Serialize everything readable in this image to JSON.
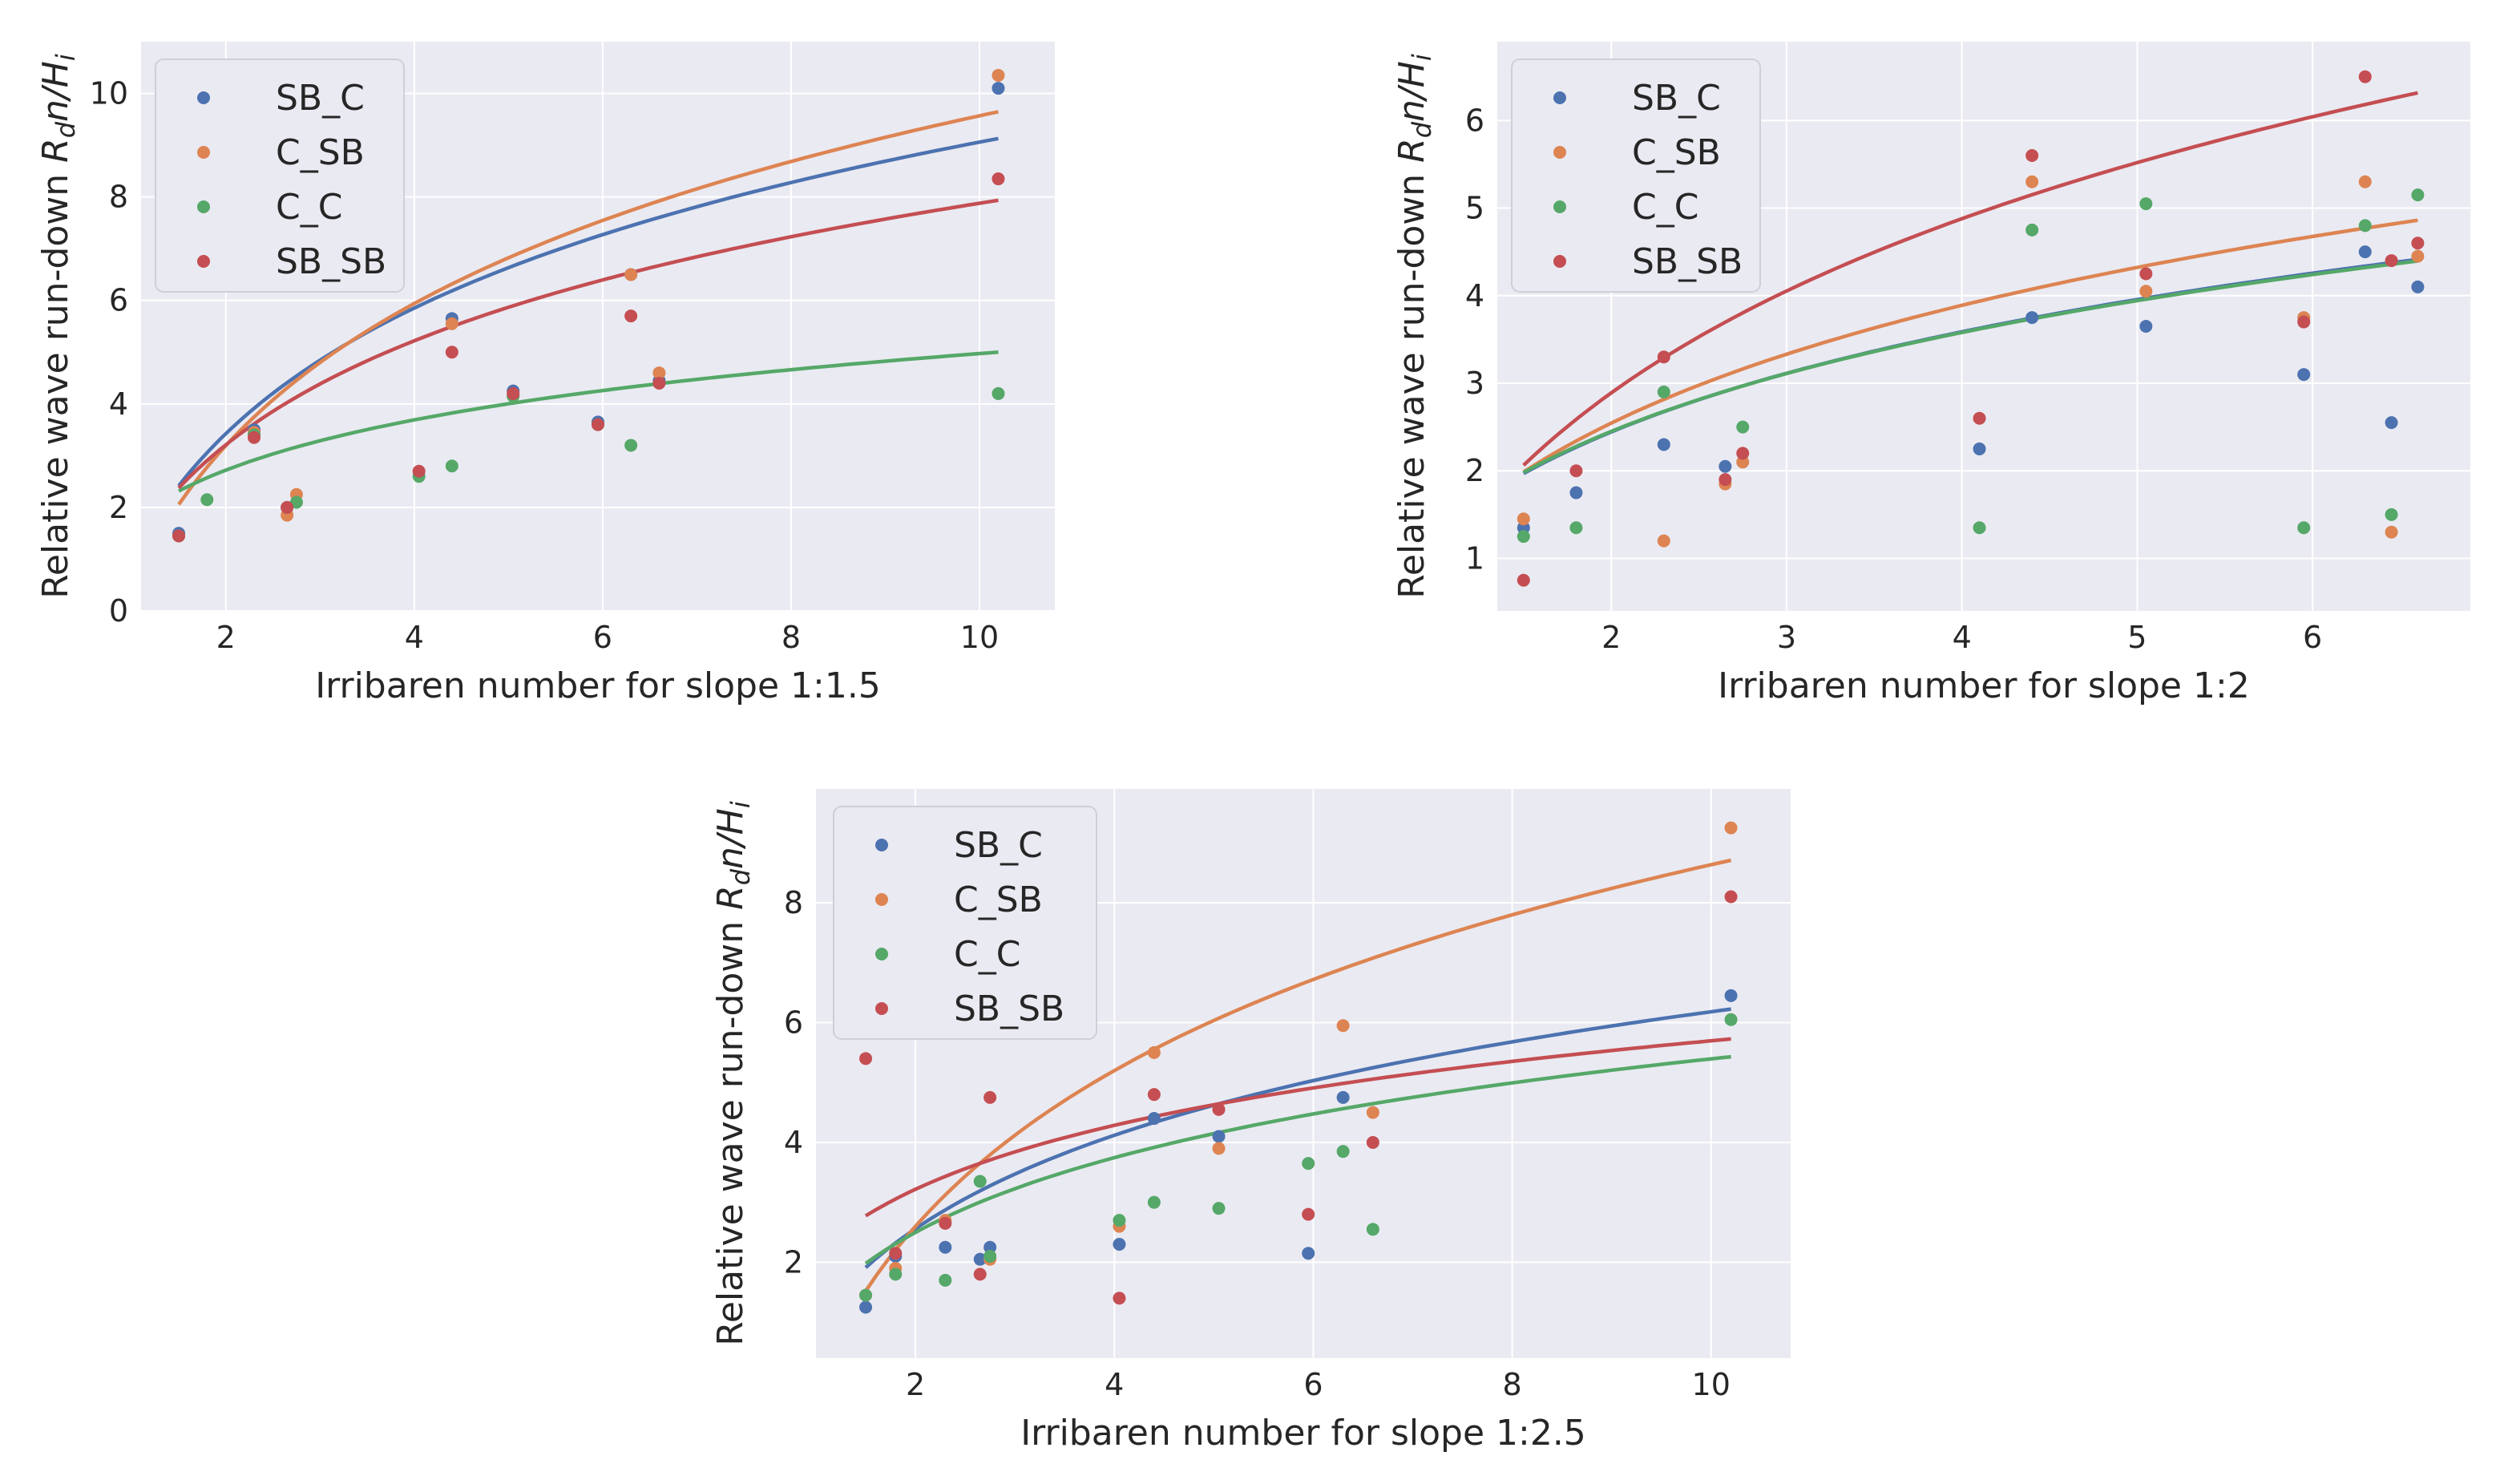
{
  "colors": {
    "SB_C": "#4c72b0",
    "C_SB": "#dd8452",
    "C_C": "#55a868",
    "SB_SB": "#c44e52",
    "plot_bg": "#eaeaf2",
    "grid": "#ffffff"
  },
  "chart_data": [
    {
      "type": "scatter",
      "title": "",
      "xlabel": "Irribaren number for slope 1:1.5",
      "ylabel": "Relative wave run-down",
      "ylabel_math": {
        "R": "R",
        "d": "d",
        "n": "n",
        "slash": "/",
        "H": "H",
        "i": "i"
      },
      "xlim": [
        1.1,
        10.8
      ],
      "ylim": [
        0,
        11
      ],
      "xticks": [
        2,
        4,
        6,
        8,
        10
      ],
      "yticks": [
        0,
        2,
        4,
        6,
        8,
        10
      ],
      "legend_position": "top-left",
      "series": [
        {
          "name": "SB_C",
          "x": [
            1.5,
            2.3,
            2.65,
            4.4,
            5.05,
            5.95,
            6.3,
            6.6,
            10.2
          ],
          "y": [
            1.5,
            3.5,
            2.0,
            5.65,
            4.25,
            3.65,
            6.5,
            4.45,
            10.1
          ],
          "fit": {
            "a": 1.0,
            "b": 3.5
          }
        },
        {
          "name": "C_SB",
          "x": [
            1.5,
            2.3,
            2.65,
            2.75,
            4.4,
            5.05,
            6.3,
            6.6,
            10.2
          ],
          "y": [
            1.45,
            3.45,
            1.85,
            2.25,
            5.55,
            4.15,
            6.5,
            4.6,
            10.35
          ],
          "fit": {
            "a": 0.45,
            "b": 3.96
          }
        },
        {
          "name": "C_C",
          "x": [
            1.5,
            1.8,
            2.3,
            2.75,
            4.05,
            4.4,
            5.05,
            5.95,
            6.3,
            10.2
          ],
          "y": [
            1.45,
            2.15,
            3.4,
            2.1,
            2.6,
            2.8,
            4.15,
            3.6,
            3.2,
            4.2
          ],
          "fit": {
            "a": 1.75,
            "b": 1.4
          }
        },
        {
          "name": "SB_SB",
          "x": [
            1.5,
            2.3,
            2.65,
            4.05,
            4.4,
            5.05,
            5.95,
            6.3,
            6.6,
            10.2
          ],
          "y": [
            1.45,
            3.35,
            2.0,
            2.7,
            5.0,
            4.2,
            3.6,
            5.7,
            4.4,
            8.35
          ],
          "fit": {
            "a": 1.2,
            "b": 2.9
          }
        }
      ]
    },
    {
      "type": "scatter",
      "title": "",
      "xlabel": "Irribaren number for slope 1:2",
      "ylabel": "Relative wave run-down",
      "ylabel_math": {
        "R": "R",
        "d": "d",
        "n": "n",
        "slash": "/",
        "H": "H",
        "i": "i"
      },
      "xlim": [
        1.35,
        6.9
      ],
      "ylim": [
        0.4,
        6.9
      ],
      "xticks": [
        2,
        3,
        4,
        5,
        6
      ],
      "yticks": [
        1,
        2,
        3,
        4,
        5,
        6
      ],
      "legend_position": "top-left",
      "series": [
        {
          "name": "SB_C",
          "x": [
            1.5,
            1.8,
            2.3,
            2.65,
            4.1,
            4.4,
            5.05,
            5.95,
            6.3,
            6.45,
            6.6
          ],
          "y": [
            1.35,
            1.75,
            2.3,
            2.05,
            2.25,
            3.75,
            3.65,
            3.1,
            4.5,
            2.55,
            4.1
          ],
          "fit": {
            "a": 1.3,
            "b": 1.65
          }
        },
        {
          "name": "C_SB",
          "x": [
            1.5,
            2.3,
            2.65,
            2.75,
            4.4,
            5.05,
            5.95,
            6.3,
            6.45,
            6.6
          ],
          "y": [
            1.45,
            1.2,
            1.85,
            2.1,
            5.3,
            4.05,
            3.75,
            5.3,
            1.3,
            4.45
          ],
          "fit": {
            "a": 1.2,
            "b": 1.94
          }
        },
        {
          "name": "C_C",
          "x": [
            1.5,
            1.8,
            2.3,
            2.75,
            4.1,
            4.4,
            5.05,
            5.95,
            6.3,
            6.45,
            6.6
          ],
          "y": [
            1.25,
            1.35,
            2.9,
            2.5,
            1.35,
            4.75,
            5.05,
            1.35,
            4.8,
            1.5,
            5.15
          ],
          "fit": {
            "a": 1.32,
            "b": 1.63
          }
        },
        {
          "name": "SB_SB",
          "x": [
            1.5,
            1.8,
            2.3,
            2.65,
            2.75,
            4.1,
            4.4,
            5.05,
            5.95,
            6.3,
            6.45,
            6.6
          ],
          "y": [
            0.75,
            2.0,
            3.3,
            1.9,
            2.2,
            2.6,
            5.6,
            4.25,
            3.7,
            6.5,
            4.4,
            4.6
          ],
          "fit": {
            "a": 0.9,
            "b": 2.87
          }
        }
      ]
    },
    {
      "type": "scatter",
      "title": "",
      "xlabel": "Irribaren number for slope 1:2.5",
      "ylabel": "Relative wave run-down",
      "ylabel_math": {
        "R": "R",
        "d": "d",
        "n": "n",
        "slash": "/",
        "H": "H",
        "i": "i"
      },
      "xlim": [
        1.0,
        10.8
      ],
      "ylim": [
        0.4,
        9.9
      ],
      "xticks": [
        2,
        4,
        6,
        8,
        10
      ],
      "yticks": [
        2,
        4,
        6,
        8
      ],
      "legend_position": "top-left",
      "series": [
        {
          "name": "SB_C",
          "x": [
            1.5,
            1.8,
            2.3,
            2.65,
            2.75,
            4.05,
            4.4,
            5.05,
            5.95,
            6.3,
            10.2
          ],
          "y": [
            1.25,
            2.1,
            2.25,
            2.05,
            2.25,
            2.3,
            4.4,
            4.1,
            2.15,
            4.75,
            6.45
          ],
          "fit": {
            "a": 1.0,
            "b": 2.25
          }
        },
        {
          "name": "C_SB",
          "x": [
            1.5,
            1.8,
            2.3,
            2.75,
            4.05,
            4.4,
            5.05,
            6.3,
            6.6,
            10.2
          ],
          "y": [
            1.45,
            1.9,
            2.7,
            2.05,
            2.6,
            5.5,
            3.9,
            5.95,
            4.5,
            9.25
          ],
          "fit": {
            "a": 0.0,
            "b": 3.75
          }
        },
        {
          "name": "C_C",
          "x": [
            1.5,
            1.8,
            2.3,
            2.65,
            2.75,
            4.05,
            4.4,
            5.05,
            5.95,
            6.3,
            6.6,
            10.2
          ],
          "y": [
            1.45,
            1.8,
            1.7,
            3.35,
            2.1,
            2.7,
            3.0,
            2.9,
            3.65,
            3.85,
            2.55,
            6.05
          ],
          "fit": {
            "a": 1.25,
            "b": 1.8
          }
        },
        {
          "name": "SB_SB",
          "x": [
            1.5,
            1.8,
            2.3,
            2.65,
            2.75,
            4.05,
            4.4,
            5.05,
            5.95,
            6.6,
            10.2
          ],
          "y": [
            5.4,
            2.15,
            2.65,
            1.8,
            4.75,
            1.4,
            4.8,
            4.55,
            2.8,
            4.0,
            8.1
          ],
          "fit": {
            "a": 2.15,
            "b": 1.54
          }
        }
      ]
    }
  ]
}
